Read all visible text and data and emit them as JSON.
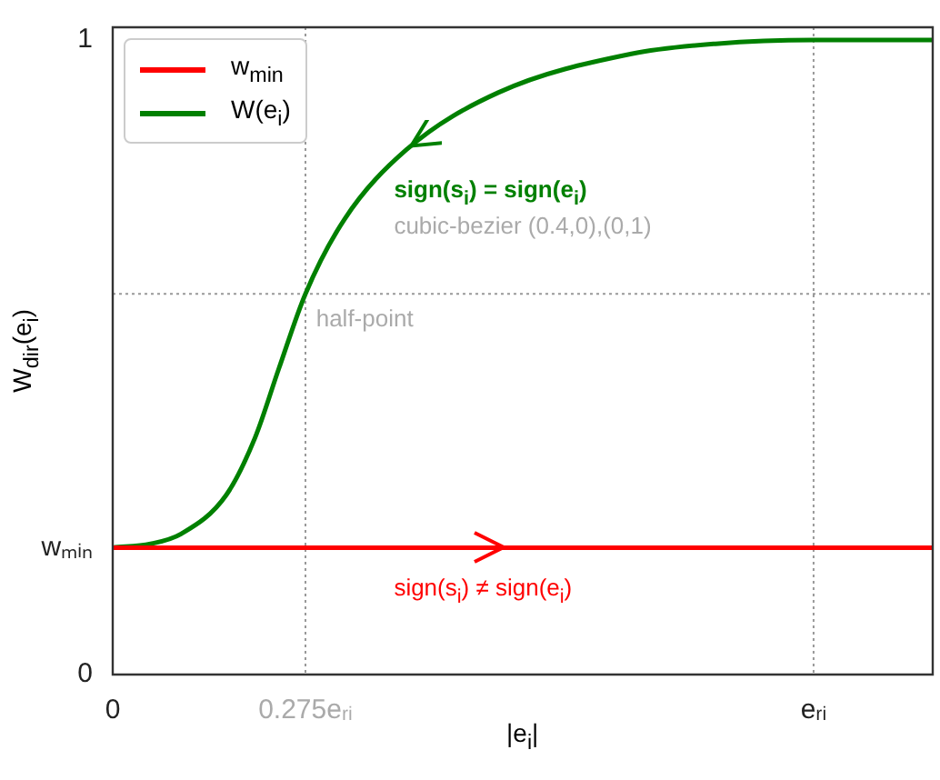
{
  "chart_data": {
    "type": "line",
    "xlabel": "|e$_{i}$|",
    "ylabel": "W$_{dir}$(e$_{i}$)",
    "xlim": [
      0,
      1.17
    ],
    "ylim": [
      0,
      1.02
    ],
    "xticks": [
      0,
      {
        "value": 0.275,
        "label": "0.275eᵣᵢ"
      },
      {
        "value": 1,
        "label": "eᵣᵢ"
      }
    ],
    "yticks": [
      0,
      {
        "value": 0.2,
        "label": "wₘᵢₙ"
      },
      1
    ],
    "series": [
      {
        "name": "w$_{min}$",
        "color": "#ff0000",
        "x": [
          0,
          1.17
        ],
        "values": [
          0.2,
          0.2
        ]
      },
      {
        "name": "W(e$_{i}$)",
        "color": "#008000",
        "x": [
          0,
          0.054,
          0.098,
          0.162,
          0.203,
          0.237,
          0.275,
          0.331,
          0.419,
          0.55,
          0.74,
          0.86,
          1,
          1.17
        ],
        "values": [
          0.2,
          0.206,
          0.222,
          0.283,
          0.373,
          0.482,
          0.6,
          0.718,
          0.827,
          0.917,
          0.978,
          0.994,
          1,
          1
        ]
      }
    ],
    "ref_lines": [
      {
        "axis": "x",
        "value": 0.275,
        "label": null,
        "color": "#999999",
        "line_style": "dotted"
      },
      {
        "axis": "x",
        "value": 1,
        "label": null,
        "color": "#999999",
        "line_style": "dotted"
      },
      {
        "axis": "y",
        "value": 0.6,
        "label": null,
        "color": "#999999",
        "line_style": "dotted"
      }
    ],
    "annotations": [
      "sign(s$_{i}$) = sign(e$_{i}$)",
      "cubic-bezier (0.4,0),(0,1)",
      "half-point",
      "sign(s$_{i}$) ≠ sign(e$_{i}$)"
    ],
    "legend": "top left",
    "grid": false,
    "marker": "none",
    "line_style": "solid"
  }
}
